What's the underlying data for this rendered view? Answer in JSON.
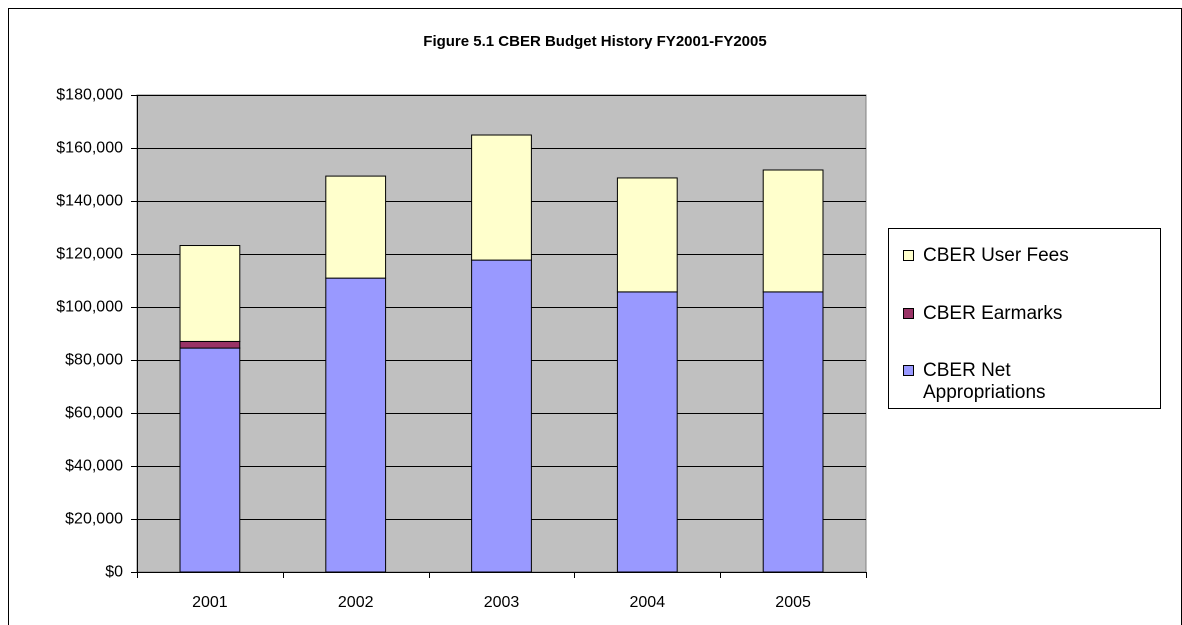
{
  "chart_data": {
    "type": "stacked_bar",
    "title": "Figure 5.1 CBER Budget History FY2001-FY2005",
    "categories": [
      "2001",
      "2002",
      "2003",
      "2004",
      "2005"
    ],
    "series": [
      {
        "name": "CBER Net Appropriations",
        "color": "#9999ff",
        "values": [
          84500,
          110900,
          117700,
          105700,
          105700
        ]
      },
      {
        "name": "CBER Earmarks",
        "color": "#993366",
        "values": [
          2500,
          0,
          0,
          0,
          0
        ]
      },
      {
        "name": "CBER User Fees",
        "color": "#ffffcc",
        "values": [
          36200,
          38500,
          47200,
          43000,
          46000
        ]
      }
    ],
    "ylim": [
      0,
      180000
    ],
    "yticks": [
      {
        "value": 0,
        "label": "$0"
      },
      {
        "value": 20000,
        "label": "$20,000"
      },
      {
        "value": 40000,
        "label": "$40,000"
      },
      {
        "value": 60000,
        "label": "$60,000"
      },
      {
        "value": 80000,
        "label": "$80,000"
      },
      {
        "value": 100000,
        "label": "$100,000"
      },
      {
        "value": 120000,
        "label": "$120,000"
      },
      {
        "value": 140000,
        "label": "$140,000"
      },
      {
        "value": 160000,
        "label": "$160,000"
      },
      {
        "value": 180000,
        "label": "$180,000"
      }
    ],
    "grid": true,
    "legend": "right",
    "plot_background": "#c0c0c0"
  }
}
